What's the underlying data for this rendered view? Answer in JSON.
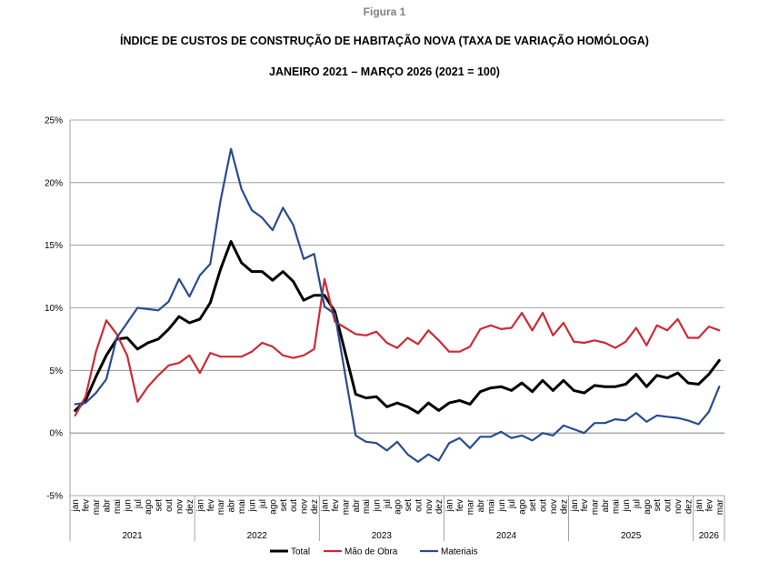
{
  "figure_label": "Figura 1",
  "chart_data": {
    "type": "line",
    "title": "ÍNDICE DE CUSTOS DE CONSTRUÇÃO DE HABITAÇÃO NOVA (TAXA DE VARIAÇÃO HOMÓLOGA)",
    "subtitle": "JANEIRO 2021 – MARÇO 2026 (2021 = 100)",
    "xlabel": "",
    "ylabel": "",
    "ylim": [
      -5,
      25
    ],
    "yticks": [
      -5,
      0,
      5,
      10,
      15,
      20,
      25
    ],
    "ytick_labels": [
      "-5%",
      "0%",
      "5%",
      "10%",
      "15%",
      "20%",
      "25%"
    ],
    "grid": true,
    "legend_position": "bottom",
    "months": [
      "jan",
      "fev",
      "mar",
      "abr",
      "mai",
      "jun",
      "jul",
      "ago",
      "set",
      "out",
      "nov",
      "dez"
    ],
    "years": [
      {
        "label": "2021",
        "months": 12
      },
      {
        "label": "2022",
        "months": 12
      },
      {
        "label": "2023",
        "months": 12
      },
      {
        "label": "2024",
        "months": 12
      },
      {
        "label": "2025",
        "months": 12
      },
      {
        "label": "2026",
        "months": 3
      }
    ],
    "series": [
      {
        "name": "Total",
        "color": "#000000",
        "values": [
          1.8,
          2.6,
          4.5,
          6.2,
          7.5,
          7.6,
          6.7,
          7.2,
          7.5,
          8.3,
          9.3,
          8.8,
          9.1,
          10.4,
          13.1,
          15.3,
          13.6,
          12.9,
          12.9,
          12.2,
          12.9,
          12.1,
          10.6,
          11.0,
          11.0,
          9.7,
          6.4,
          3.1,
          2.8,
          2.9,
          2.1,
          2.4,
          2.1,
          1.6,
          2.4,
          1.8,
          2.4,
          2.6,
          2.3,
          3.3,
          3.6,
          3.7,
          3.4,
          4.0,
          3.3,
          4.2,
          3.4,
          4.2,
          3.4,
          3.2,
          3.8,
          3.7,
          3.7,
          3.9,
          4.7,
          3.7,
          4.6,
          4.4,
          4.8,
          4.0,
          3.9,
          4.7,
          5.8
        ]
      },
      {
        "name": "Mão de Obra",
        "color": "#cc2b36",
        "values": [
          1.4,
          2.9,
          6.5,
          9.0,
          7.9,
          6.2,
          2.5,
          3.7,
          4.6,
          5.4,
          5.6,
          6.2,
          4.8,
          6.4,
          6.1,
          6.1,
          6.1,
          6.5,
          7.2,
          6.9,
          6.2,
          6.0,
          6.2,
          6.7,
          12.3,
          8.9,
          8.4,
          7.9,
          7.8,
          8.1,
          7.2,
          6.8,
          7.6,
          7.1,
          8.2,
          7.4,
          6.5,
          6.5,
          6.9,
          8.3,
          8.6,
          8.3,
          8.4,
          9.6,
          8.2,
          9.6,
          7.8,
          8.8,
          7.3,
          7.2,
          7.4,
          7.2,
          6.8,
          7.3,
          8.4,
          7.0,
          8.6,
          8.2,
          9.1,
          7.6,
          7.6,
          8.5,
          8.2
        ]
      },
      {
        "name": "Materiais",
        "color": "#2a4b8f",
        "values": [
          2.3,
          2.4,
          3.2,
          4.3,
          7.6,
          8.8,
          10.0,
          9.9,
          9.8,
          10.5,
          12.3,
          10.9,
          12.6,
          13.5,
          18.6,
          22.7,
          19.5,
          17.8,
          17.2,
          16.2,
          18.0,
          16.6,
          13.9,
          14.3,
          10.1,
          9.5,
          4.6,
          -0.2,
          -0.7,
          -0.8,
          -1.4,
          -0.7,
          -1.7,
          -2.3,
          -1.7,
          -2.2,
          -0.8,
          -0.4,
          -1.2,
          -0.3,
          -0.3,
          0.1,
          -0.4,
          -0.2,
          -0.6,
          0.0,
          -0.2,
          0.6,
          0.3,
          0.0,
          0.8,
          0.8,
          1.1,
          1.0,
          1.6,
          0.9,
          1.4,
          1.3,
          1.2,
          1.0,
          0.7,
          1.7,
          3.7
        ]
      }
    ]
  }
}
